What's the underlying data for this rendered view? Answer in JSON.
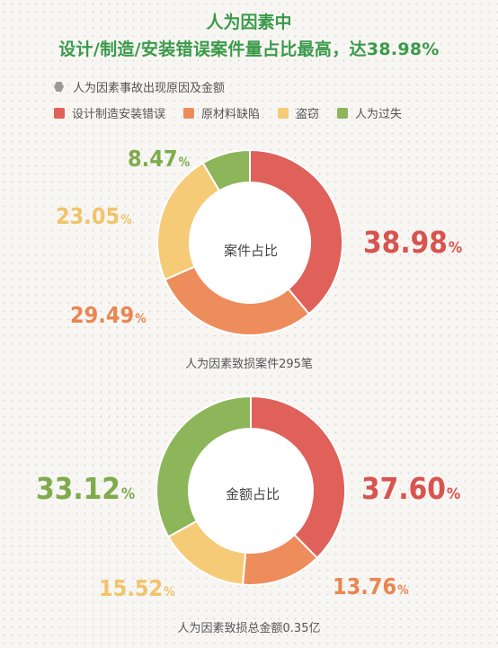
{
  "title_line1": "人为因素中",
  "title_line2": "设计/制造/安装错误案件量占比最高，达38.98%",
  "legend_title": "人为因素事故出现原因及金额",
  "legend": [
    {
      "label": "设计制造安装错误",
      "color": "#e0605a"
    },
    {
      "label": "原材料缺陷",
      "color": "#ee8d5c"
    },
    {
      "label": "盗窃",
      "color": "#f6cb78"
    },
    {
      "label": "人为过失",
      "color": "#8db55a"
    }
  ],
  "chart_data": [
    {
      "type": "pie",
      "variant": "donut",
      "center_label": "案件占比",
      "caption": "人为因素致损案件295笔",
      "categories": [
        "设计制造安装错误",
        "原材料缺陷",
        "盗窃",
        "人为过失"
      ],
      "values": [
        38.98,
        29.49,
        23.05,
        8.47
      ],
      "labels": [
        "38.98",
        "29.49",
        "23.05",
        "8.47"
      ],
      "unit": "%"
    },
    {
      "type": "pie",
      "variant": "donut",
      "center_label": "金额占比",
      "caption": "人为因素致损总金额0.35亿",
      "categories": [
        "设计制造安装错误",
        "原材料缺陷",
        "盗窃",
        "人为过失"
      ],
      "values": [
        37.6,
        13.76,
        15.52,
        33.12
      ],
      "labels": [
        "37.60",
        "13.76",
        "15.52",
        "33.12"
      ],
      "unit": "%"
    }
  ]
}
